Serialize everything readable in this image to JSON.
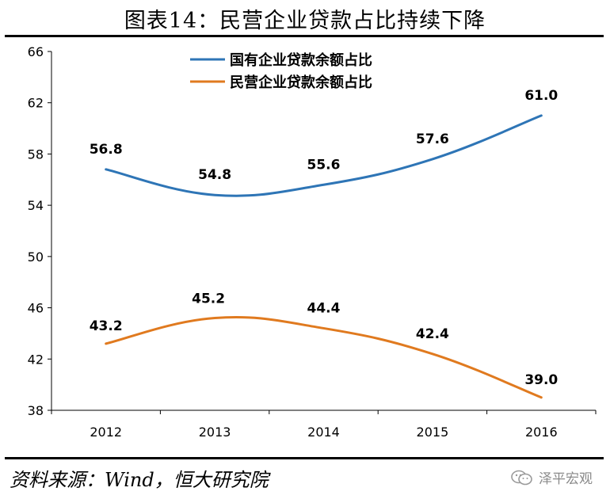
{
  "title": "图表14：民营企业贷款占比持续下降",
  "source": "资料来源：Wind，恒大研究院",
  "watermark": "泽平宏观",
  "watermark_icon": "wechat-icon",
  "chart_data": {
    "type": "line",
    "title": "图表14：民营企业贷款占比持续下降",
    "xlabel": "",
    "ylabel": "",
    "categories": [
      "2012",
      "2013",
      "2014",
      "2015",
      "2016"
    ],
    "ylim": [
      38,
      66
    ],
    "yticks": [
      38,
      42,
      46,
      50,
      54,
      58,
      62,
      66
    ],
    "grid": false,
    "legend_position": "top-center",
    "series": [
      {
        "name": "国有企业贷款余额占比",
        "values": [
          56.8,
          54.8,
          55.6,
          57.6,
          61.0
        ],
        "labels": [
          "56.8",
          "54.8",
          "55.6",
          "57.6",
          "61.0"
        ],
        "color": "#2e75b6"
      },
      {
        "name": "民营企业贷款余额占比",
        "values": [
          43.2,
          45.2,
          44.4,
          42.4,
          39.0
        ],
        "labels": [
          "43.2",
          "45.2",
          "44.4",
          "42.4",
          "39.0"
        ],
        "color": "#e07a1f"
      }
    ]
  }
}
